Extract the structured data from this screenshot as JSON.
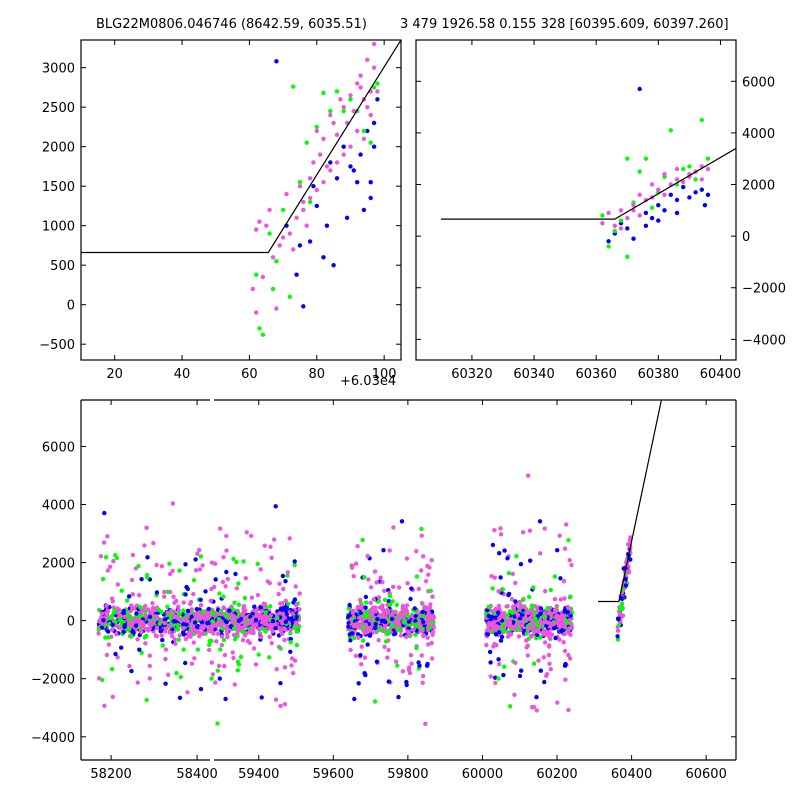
{
  "figure": {
    "title_left": "BLG22M0806.046746 (8642.59, 6035.51)",
    "title_right": "3 479 1926.58 0.155 328 [60395.609, 60397.260]",
    "offset_label": "+6.03e4"
  },
  "colors": {
    "blue": "#0000ff",
    "green": "#00ff00",
    "pink": "#ee55dd",
    "line": "#000000"
  },
  "chart_data": [
    {
      "id": "zoom-left",
      "type": "scatter",
      "title": "BLG22M0806.046746 (8642.59, 6035.51)",
      "xlim": [
        10,
        105
      ],
      "ylim": [
        -700,
        3350
      ],
      "xticks": [
        20,
        40,
        60,
        80,
        100
      ],
      "yticks": [
        -500,
        0,
        500,
        1000,
        1500,
        2000,
        2500,
        3000
      ],
      "x_offset_label": "+6.03e4",
      "model_line": [
        [
          10,
          660
        ],
        [
          65.6,
          660
        ],
        [
          105,
          3350
        ]
      ],
      "series": [
        {
          "color": "blue",
          "points": [
            [
              68,
              3080
            ],
            [
              74,
              380
            ],
            [
              76,
              -20
            ],
            [
              78,
              800
            ],
            [
              80,
              1250
            ],
            [
              82,
              600
            ],
            [
              84,
              1800
            ],
            [
              85,
              500
            ],
            [
              86,
              1600
            ],
            [
              88,
              2000
            ],
            [
              89,
              1100
            ],
            [
              90,
              1750
            ],
            [
              91,
              1700
            ],
            [
              92,
              1550
            ],
            [
              93,
              1900
            ],
            [
              94,
              1200
            ],
            [
              95,
              2200
            ],
            [
              96,
              1350
            ],
            [
              96,
              1550
            ],
            [
              97,
              2000
            ],
            [
              97,
              2300
            ],
            [
              98,
              2600
            ],
            [
              71,
              1000
            ],
            [
              75,
              750
            ],
            [
              79,
              1500
            ],
            [
              83,
              1000
            ]
          ]
        },
        {
          "color": "green",
          "points": [
            [
              62,
              380
            ],
            [
              63,
              -300
            ],
            [
              64,
              -380
            ],
            [
              66,
              900
            ],
            [
              67,
              200
            ],
            [
              68,
              550
            ],
            [
              70,
              1200
            ],
            [
              72,
              100
            ],
            [
              73,
              2760
            ],
            [
              75,
              1550
            ],
            [
              77,
              2050
            ],
            [
              78,
              1300
            ],
            [
              80,
              2250
            ],
            [
              82,
              2680
            ],
            [
              84,
              2450
            ],
            [
              86,
              2700
            ],
            [
              88,
              2450
            ],
            [
              90,
              2600
            ],
            [
              92,
              2450
            ],
            [
              94,
              2200
            ],
            [
              96,
              2050
            ],
            [
              97,
              2750
            ],
            [
              98,
              2800
            ]
          ]
        },
        {
          "color": "pink",
          "points": [
            [
              61,
              200
            ],
            [
              62,
              -100
            ],
            [
              62,
              950
            ],
            [
              63,
              1050
            ],
            [
              64,
              350
            ],
            [
              65,
              1000
            ],
            [
              66,
              1200
            ],
            [
              67,
              600
            ],
            [
              68,
              -50
            ],
            [
              69,
              750
            ],
            [
              70,
              850
            ],
            [
              71,
              1400
            ],
            [
              72,
              900
            ],
            [
              73,
              700
            ],
            [
              74,
              1100
            ],
            [
              75,
              1500
            ],
            [
              76,
              1300
            ],
            [
              77,
              1000
            ],
            [
              78,
              1600
            ],
            [
              79,
              1800
            ],
            [
              80,
              2200
            ],
            [
              81,
              1900
            ],
            [
              82,
              2100
            ],
            [
              83,
              1750
            ],
            [
              84,
              2400
            ],
            [
              85,
              2300
            ],
            [
              86,
              2150
            ],
            [
              87,
              2600
            ],
            [
              88,
              2500
            ],
            [
              89,
              2300
            ],
            [
              90,
              2650
            ],
            [
              91,
              2450
            ],
            [
              92,
              2800
            ],
            [
              93,
              2900
            ],
            [
              94,
              2600
            ],
            [
              95,
              2500
            ],
            [
              96,
              2400
            ],
            [
              97,
              3000
            ],
            [
              97,
              3300
            ],
            [
              98,
              2700
            ],
            [
              94,
              2100
            ],
            [
              92,
              2200
            ],
            [
              90,
              2000
            ],
            [
              88,
              1900
            ],
            [
              86,
              1800
            ],
            [
              84,
              1700
            ],
            [
              82,
              1550
            ],
            [
              80,
              1450
            ],
            [
              78,
              1350
            ],
            [
              76,
              1200
            ],
            [
              96,
              2700
            ],
            [
              95,
              3100
            ],
            [
              93,
              2750
            ]
          ]
        }
      ]
    },
    {
      "id": "zoom-right",
      "type": "scatter",
      "xlim": [
        60302,
        60405
      ],
      "ylim": [
        -4800,
        7600
      ],
      "xticks": [
        60320,
        60340,
        60360,
        60380,
        60400
      ],
      "yticks": [
        -4000,
        -2000,
        0,
        2000,
        4000,
        6000
      ],
      "model_line": [
        [
          60310,
          660
        ],
        [
          60366,
          660
        ],
        [
          60405,
          3400
        ]
      ],
      "series": [
        {
          "color": "blue",
          "points": [
            [
              60364,
              -200
            ],
            [
              60366,
              100
            ],
            [
              60368,
              500
            ],
            [
              60370,
              300
            ],
            [
              60372,
              -100
            ],
            [
              60374,
              5700
            ],
            [
              60376,
              900
            ],
            [
              60378,
              700
            ],
            [
              60380,
              1200
            ],
            [
              60382,
              1000
            ],
            [
              60384,
              1600
            ],
            [
              60386,
              1400
            ],
            [
              60388,
              1900
            ],
            [
              60390,
              1500
            ],
            [
              60392,
              1700
            ],
            [
              60394,
              1800
            ],
            [
              60395,
              1200
            ],
            [
              60396,
              1600
            ],
            [
              60386,
              900
            ],
            [
              60380,
              600
            ],
            [
              60376,
              400
            ]
          ]
        },
        {
          "color": "green",
          "points": [
            [
              60362,
              800
            ],
            [
              60364,
              -400
            ],
            [
              60366,
              200
            ],
            [
              60368,
              600
            ],
            [
              60370,
              -800
            ],
            [
              60372,
              1300
            ],
            [
              60374,
              2500
            ],
            [
              60376,
              3000
            ],
            [
              60378,
              1100
            ],
            [
              60380,
              1700
            ],
            [
              60382,
              2300
            ],
            [
              60384,
              4100
            ],
            [
              60386,
              2000
            ],
            [
              60388,
              2600
            ],
            [
              60390,
              2700
            ],
            [
              60392,
              2200
            ],
            [
              60394,
              4500
            ],
            [
              60396,
              3000
            ],
            [
              60370,
              3000
            ]
          ]
        },
        {
          "color": "pink",
          "points": [
            [
              60362,
              500
            ],
            [
              60364,
              900
            ],
            [
              60366,
              400
            ],
            [
              60368,
              1000
            ],
            [
              60370,
              700
            ],
            [
              60372,
              1200
            ],
            [
              60374,
              800
            ],
            [
              60376,
              1400
            ],
            [
              60378,
              1500
            ],
            [
              60380,
              1800
            ],
            [
              60382,
              1600
            ],
            [
              60384,
              2000
            ],
            [
              60386,
              2200
            ],
            [
              60388,
              2100
            ],
            [
              60390,
              2400
            ],
            [
              60392,
              2500
            ],
            [
              60394,
              2700
            ],
            [
              60396,
              2600
            ],
            [
              60374,
              1600
            ],
            [
              60378,
              2000
            ],
            [
              60382,
              2400
            ],
            [
              60386,
              2600
            ],
            [
              60390,
              2300
            ],
            [
              60394,
              2200
            ],
            [
              60368,
              300
            ],
            [
              60372,
              1000
            ]
          ]
        }
      ]
    },
    {
      "id": "full-lightcurve",
      "type": "scatter",
      "xlim": [
        58130,
        60680
      ],
      "ylim": [
        -4800,
        7600
      ],
      "xticks": [
        58200,
        58400,
        59400,
        59600,
        59800,
        60000,
        60200,
        60400,
        60600
      ],
      "yticks": [
        -4000,
        -2000,
        0,
        2000,
        4000,
        6000
      ],
      "axis_break": [
        58430,
        59280
      ],
      "model_line": [
        [
          60310,
          660
        ],
        [
          60366,
          660
        ],
        [
          60480,
          7600
        ]
      ],
      "seasons": [
        {
          "x": [
            58170,
            58420
          ],
          "color_mix": [
            "blue",
            "green",
            "pink"
          ]
        },
        {
          "x": [
            59260,
            59510
          ],
          "color_mix": [
            "blue",
            "green",
            "pink"
          ]
        },
        {
          "x": [
            59640,
            59870
          ],
          "color_mix": [
            "blue",
            "green",
            "pink"
          ]
        },
        {
          "x": [
            60010,
            60240
          ],
          "color_mix": [
            "blue",
            "green",
            "pink"
          ]
        },
        {
          "x": [
            60362,
            60397
          ],
          "color_mix": [
            "blue",
            "green",
            "pink"
          ]
        }
      ]
    }
  ]
}
